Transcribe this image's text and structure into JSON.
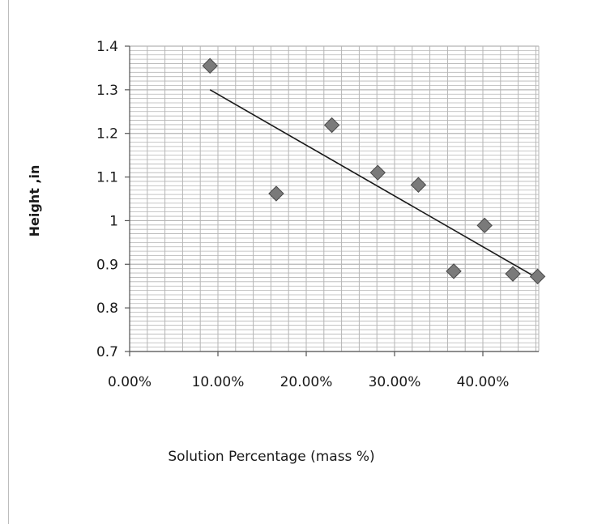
{
  "chart_data": {
    "type": "scatter",
    "title": "",
    "xlabel": "Solution Percentage (mass %)",
    "ylabel": "Height ,in",
    "xlim": [
      0,
      0.46
    ],
    "ylim": [
      0.7,
      1.4
    ],
    "x_ticks": [
      {
        "value": 0.0,
        "label": "0.00%"
      },
      {
        "value": 0.1,
        "label": "10.00%"
      },
      {
        "value": 0.2,
        "label": "20.00%"
      },
      {
        "value": 0.3,
        "label": "30.00%"
      },
      {
        "value": 0.4,
        "label": "40.00%"
      }
    ],
    "y_ticks": [
      {
        "value": 0.7,
        "label": "0.7"
      },
      {
        "value": 0.8,
        "label": "0.8"
      },
      {
        "value": 0.9,
        "label": "0.9"
      },
      {
        "value": 1.0,
        "label": "1"
      },
      {
        "value": 1.1,
        "label": "1.1"
      },
      {
        "value": 1.2,
        "label": "1.2"
      },
      {
        "value": 1.3,
        "label": "1.3"
      },
      {
        "value": 1.4,
        "label": "1.4"
      }
    ],
    "grid": true,
    "legend": "none",
    "series": [
      {
        "points": [
          {
            "x": 0.091,
            "y": 1.355
          },
          {
            "x": 0.166,
            "y": 1.062
          },
          {
            "x": 0.229,
            "y": 1.219
          },
          {
            "x": 0.281,
            "y": 1.11
          },
          {
            "x": 0.327,
            "y": 1.082
          },
          {
            "x": 0.367,
            "y": 0.884
          },
          {
            "x": 0.402,
            "y": 0.989
          },
          {
            "x": 0.434,
            "y": 0.878
          },
          {
            "x": 0.462,
            "y": 0.872
          }
        ],
        "marker": "diamond",
        "color": "#7a7a7a"
      }
    ],
    "trendline": {
      "type": "linear",
      "x_start": 0.091,
      "y_start": 1.3,
      "x_end": 0.462,
      "y_end": 0.868,
      "color": "#1a1a1a"
    },
    "grid_color": "#b5b5b5"
  }
}
